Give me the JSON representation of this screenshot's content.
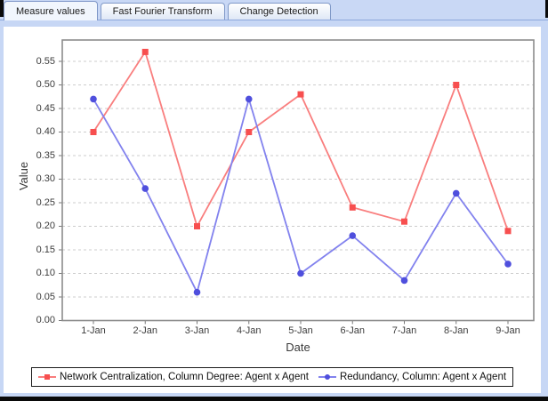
{
  "tabs": [
    {
      "label": "Measure values",
      "selected": true
    },
    {
      "label": "Fast Fourier Transform",
      "selected": false
    },
    {
      "label": "Change Detection",
      "selected": false
    }
  ],
  "chart_data": {
    "type": "line",
    "title": "",
    "xlabel": "Date",
    "ylabel": "Value",
    "categories": [
      "1-Jan",
      "2-Jan",
      "3-Jan",
      "4-Jan",
      "5-Jan",
      "6-Jan",
      "7-Jan",
      "8-Jan",
      "9-Jan"
    ],
    "y_ticks": [
      "0.00",
      "0.05",
      "0.10",
      "0.15",
      "0.20",
      "0.25",
      "0.30",
      "0.35",
      "0.40",
      "0.45",
      "0.50",
      "0.55"
    ],
    "y_tick_step": 0.05,
    "ylim": [
      0.0,
      0.595
    ],
    "grid": "horizontal-dashed",
    "legend_position": "bottom",
    "series": [
      {
        "name": "Network Centralization, Column Degree: Agent x Agent",
        "marker": "square",
        "color": "#f74f4f",
        "line_color": "#f97e7e",
        "values": [
          0.4,
          0.57,
          0.2,
          0.4,
          0.48,
          0.24,
          0.21,
          0.5,
          0.19
        ]
      },
      {
        "name": "Redundancy, Column: Agent x Agent",
        "marker": "circle",
        "color": "#4f4fdd",
        "line_color": "#8282ee",
        "values": [
          0.47,
          0.28,
          0.06,
          0.47,
          0.1,
          0.18,
          0.085,
          0.27,
          0.12
        ]
      }
    ]
  },
  "colors": {
    "frame_blue": "#c7d7f5",
    "tab_border": "#7e96c8",
    "plot_border": "#8c8c8c",
    "gridline": "#cccccc",
    "tick_mark": "#777777",
    "bottom_bar": "#0a0a0a"
  }
}
